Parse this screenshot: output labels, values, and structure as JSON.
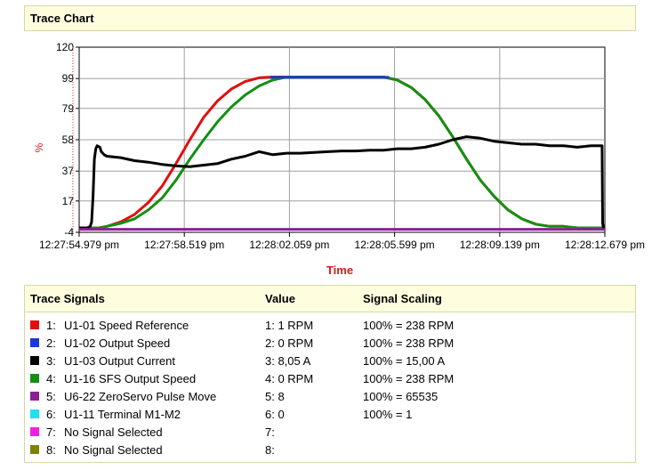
{
  "chart_header": {
    "title": "Trace Chart"
  },
  "chart_data": {
    "type": "line",
    "ylabel": "%",
    "xlabel": "Time",
    "ylim": [
      -4,
      120
    ],
    "y_ticks": [
      120,
      99,
      79,
      58,
      37,
      17,
      -4
    ],
    "x_ticks": [
      "12:27:54.979 pm",
      "12:27:58.519 pm",
      "12:28:02.059 pm",
      "12:28:05.599 pm",
      "12:28:09.139 pm",
      "12:28:12.679 pm"
    ],
    "grid": true,
    "series": [
      {
        "name": "U1-01 Speed Reference",
        "color": "#e01010",
        "points": [
          [
            0,
            -1
          ],
          [
            0.7,
            -1
          ],
          [
            1,
            0
          ],
          [
            1.5,
            3
          ],
          [
            2,
            8
          ],
          [
            2.5,
            16
          ],
          [
            3,
            27
          ],
          [
            3.5,
            42
          ],
          [
            4,
            58
          ],
          [
            4.5,
            73
          ],
          [
            5,
            84
          ],
          [
            5.5,
            92
          ],
          [
            6,
            97
          ],
          [
            6.5,
            99.5
          ],
          [
            7,
            100
          ],
          [
            11,
            100
          ],
          [
            11.5,
            98
          ],
          [
            12,
            93
          ],
          [
            12.5,
            85
          ],
          [
            13,
            74
          ],
          [
            13.5,
            60
          ],
          [
            14,
            45
          ],
          [
            14.5,
            31
          ],
          [
            15,
            20
          ],
          [
            15.5,
            11
          ],
          [
            16,
            5
          ],
          [
            16.5,
            1.5
          ],
          [
            17,
            0
          ],
          [
            17.5,
            0
          ],
          [
            18,
            -1
          ],
          [
            18.5,
            -1
          ],
          [
            19,
            -1
          ]
        ]
      },
      {
        "name": "U1-16 SFS Output Speed",
        "color": "#129012",
        "points": [
          [
            0,
            -1
          ],
          [
            0.8,
            -1
          ],
          [
            1,
            0
          ],
          [
            1.5,
            2
          ],
          [
            2,
            5
          ],
          [
            2.5,
            11
          ],
          [
            3,
            19
          ],
          [
            3.5,
            31
          ],
          [
            4,
            45
          ],
          [
            4.5,
            58
          ],
          [
            5,
            70
          ],
          [
            5.5,
            80
          ],
          [
            6,
            88
          ],
          [
            6.5,
            94
          ],
          [
            7,
            98
          ],
          [
            7.5,
            100
          ],
          [
            8,
            100
          ],
          [
            11,
            100
          ],
          [
            11.5,
            98
          ],
          [
            12,
            93
          ],
          [
            12.5,
            85
          ],
          [
            13,
            74
          ],
          [
            13.5,
            60
          ],
          [
            14,
            45
          ],
          [
            14.5,
            31
          ],
          [
            15,
            20
          ],
          [
            15.5,
            11
          ],
          [
            16,
            5
          ],
          [
            16.5,
            1.5
          ],
          [
            17,
            0
          ],
          [
            17.5,
            0
          ],
          [
            18,
            -1
          ],
          [
            18.5,
            -1
          ],
          [
            19,
            -1
          ]
        ]
      },
      {
        "name": "U1-03 Output Current",
        "color": "#000000",
        "points": [
          [
            0,
            -1
          ],
          [
            0.3,
            -1
          ],
          [
            0.4,
            0
          ],
          [
            0.45,
            3
          ],
          [
            0.5,
            20
          ],
          [
            0.55,
            45
          ],
          [
            0.6,
            52
          ],
          [
            0.65,
            54
          ],
          [
            0.75,
            53
          ],
          [
            0.8,
            50
          ],
          [
            0.9,
            48
          ],
          [
            1,
            47
          ],
          [
            1.5,
            46
          ],
          [
            2,
            44
          ],
          [
            2.5,
            43
          ],
          [
            3,
            41.5
          ],
          [
            3.5,
            40.5
          ],
          [
            4,
            40
          ],
          [
            4.5,
            41
          ],
          [
            5,
            42
          ],
          [
            5.5,
            45
          ],
          [
            6,
            47
          ],
          [
            6.5,
            50
          ],
          [
            7,
            48
          ],
          [
            7.5,
            49
          ],
          [
            8,
            49
          ],
          [
            8.5,
            49.5
          ],
          [
            9,
            50
          ],
          [
            9.5,
            50.5
          ],
          [
            10,
            50.5
          ],
          [
            10.5,
            51
          ],
          [
            11,
            51
          ],
          [
            11.5,
            52
          ],
          [
            12,
            52
          ],
          [
            12.5,
            53
          ],
          [
            13,
            55
          ],
          [
            13.5,
            58
          ],
          [
            14,
            60
          ],
          [
            14.5,
            59
          ],
          [
            15,
            57
          ],
          [
            15.5,
            56
          ],
          [
            16,
            55
          ],
          [
            16.5,
            55
          ],
          [
            17,
            54
          ],
          [
            17.5,
            54
          ],
          [
            18,
            53
          ],
          [
            18.5,
            54
          ],
          [
            18.9,
            54
          ],
          [
            18.92,
            2
          ],
          [
            18.95,
            -1
          ],
          [
            19,
            -1
          ]
        ]
      },
      {
        "name": "U6-22 ZeroServo Pulse Move",
        "color": "#8a2090",
        "points": [
          [
            0,
            -2
          ],
          [
            19,
            -2
          ]
        ]
      },
      {
        "name": "U1-02 Output Speed",
        "color": "#1a3ad0",
        "points": [
          [
            6.9,
            99.8
          ],
          [
            7.1,
            99.8
          ],
          [
            9.2,
            99.8
          ],
          [
            9.4,
            99.8
          ],
          [
            11,
            99.8
          ],
          [
            11.2,
            99.8
          ]
        ]
      }
    ]
  },
  "signals": {
    "header": {
      "name": "Trace Signals",
      "value": "Value",
      "scaling": "Signal Scaling"
    },
    "rows": [
      {
        "index": "1:",
        "color": "#e01010",
        "name": "U1-01 Speed Reference",
        "value": "1: 1 RPM",
        "scaling": "100% = 238 RPM"
      },
      {
        "index": "2:",
        "color": "#1a3ad0",
        "name": "U1-02 Output Speed",
        "value": "2: 0 RPM",
        "scaling": "100% = 238 RPM"
      },
      {
        "index": "3:",
        "color": "#000000",
        "name": "U1-03 Output Current",
        "value": "3: 8,05 A",
        "scaling": "100% = 15,00 A"
      },
      {
        "index": "4:",
        "color": "#129012",
        "name": "U1-16 SFS Output Speed",
        "value": "4: 0 RPM",
        "scaling": "100% = 238 RPM"
      },
      {
        "index": "5:",
        "color": "#8a2090",
        "name": "U6-22 ZeroServo Pulse Move",
        "value": "5: 8",
        "scaling": "100% = 65535"
      },
      {
        "index": "6:",
        "color": "#20e0f0",
        "name": "U1-11 Terminal M1-M2",
        "value": "6: 0",
        "scaling": "100% = 1"
      },
      {
        "index": "7:",
        "color": "#f020e0",
        "name": "No Signal Selected",
        "value": "7:",
        "scaling": ""
      },
      {
        "index": "8:",
        "color": "#808000",
        "name": "No Signal Selected",
        "value": "8:",
        "scaling": ""
      }
    ]
  }
}
